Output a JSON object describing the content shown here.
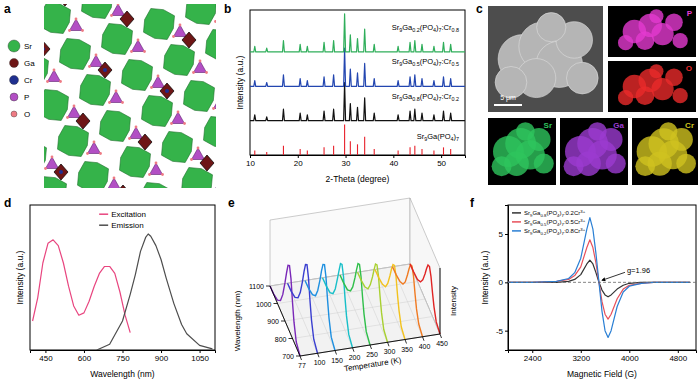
{
  "panel_labels": [
    "a",
    "b",
    "c",
    "d",
    "e",
    "f"
  ],
  "structure": {
    "legend": [
      {
        "label": "Sr",
        "color": "#35b34a"
      },
      {
        "label": "Ga",
        "color": "#6e1616"
      },
      {
        "label": "Cr",
        "color": "#1f2f8f"
      },
      {
        "label": "P",
        "color": "#b24fc4"
      },
      {
        "label": "O",
        "color": "#ee7b84"
      }
    ]
  },
  "sem": {
    "scale_bar": "5 μm",
    "maps": [
      {
        "label": "P",
        "color": "#e33ad0"
      },
      {
        "label": "O",
        "color": "#ea2a2a"
      },
      {
        "label": "Sr",
        "color": "#2ec45c"
      },
      {
        "label": "Ga",
        "color": "#9b3bd0"
      },
      {
        "label": "Cr",
        "color": "#cfc21f"
      }
    ]
  },
  "chart_data": [
    {
      "type": "line",
      "x_label": "2-Theta (degree)",
      "y_label": "Intensity (a.u.)",
      "xlim": [
        10,
        55
      ],
      "xticks": [
        10,
        20,
        30,
        40,
        50
      ],
      "ylim": [
        0,
        3.8
      ],
      "tick_labels": "x",
      "x": [
        10,
        10.8,
        11,
        11.2,
        13.3,
        13.5,
        13.7,
        16.8,
        17,
        17.2,
        20.3,
        20.5,
        20.7,
        21.8,
        22,
        22.2,
        25.3,
        25.5,
        25.7,
        27.3,
        27.5,
        27.7,
        29.6,
        29.8,
        30,
        30.8,
        31,
        31.2,
        32.3,
        32.5,
        32.7,
        33.8,
        34,
        34.2,
        35.8,
        36,
        36.2,
        40.8,
        41,
        41.2,
        43.3,
        43.5,
        43.7,
        44.3,
        44.5,
        44.7,
        45.8,
        46,
        46.2,
        48.3,
        48.5,
        48.7,
        50.3,
        50.5,
        50.7,
        51.8,
        52,
        52.2,
        55
      ],
      "series": [
        {
          "name": "Sr9Ga(PO4)7",
          "type": "stem",
          "color": "#e8202a",
          "x": [
            11,
            13.5,
            17,
            20.5,
            22,
            25.5,
            27.5,
            29.8,
            31,
            32.5,
            34,
            36,
            41,
            43.5,
            44.5,
            46,
            48.5,
            50.5,
            52
          ],
          "values": [
            0.12,
            0.08,
            0.24,
            0.16,
            0.12,
            0.2,
            0.24,
            0.8,
            0.36,
            0.28,
            0.48,
            0.16,
            0.12,
            0.2,
            0.24,
            0.16,
            0.12,
            0.2,
            0.16
          ]
        },
        {
          "name": "Sr9Ga0.8(PO4)7:Cr0.2",
          "color": "#111111",
          "values": [
            0.9,
            0.9,
            1.05,
            0.9,
            0.9,
            1.0,
            0.9,
            0.9,
            1.2,
            0.9,
            0.9,
            1.1,
            0.9,
            0.9,
            1.05,
            0.9,
            0.9,
            1.15,
            0.9,
            0.9,
            1.2,
            0.9,
            0.9,
            1.9,
            0.9,
            0.9,
            1.35,
            0.9,
            0.9,
            1.25,
            0.9,
            0.9,
            1.5,
            0.9,
            0.9,
            1.1,
            0.9,
            0.9,
            1.05,
            0.9,
            0.9,
            1.15,
            0.9,
            0.9,
            1.2,
            0.9,
            0.9,
            1.1,
            0.9,
            0.9,
            1.05,
            0.9,
            0.9,
            1.15,
            0.9,
            0.9,
            1.1,
            0.9,
            0.9
          ]
        },
        {
          "name": "Sr9Ga0.5(PO4)7:Cr0.5",
          "color": "#2346b0",
          "values": [
            1.8,
            1.8,
            1.95,
            1.8,
            1.8,
            1.9,
            1.8,
            1.8,
            2.1,
            1.8,
            1.8,
            2.0,
            1.8,
            1.8,
            1.95,
            1.8,
            1.8,
            2.05,
            1.8,
            1.8,
            2.1,
            1.8,
            1.8,
            2.8,
            1.8,
            1.8,
            2.25,
            1.8,
            1.8,
            2.15,
            1.8,
            1.8,
            2.4,
            1.8,
            1.8,
            2.0,
            1.8,
            1.8,
            1.95,
            1.8,
            1.8,
            2.05,
            1.8,
            1.8,
            2.1,
            1.8,
            1.8,
            2.0,
            1.8,
            1.8,
            1.95,
            1.8,
            1.8,
            2.05,
            1.8,
            1.8,
            2.0,
            1.8,
            1.8
          ]
        },
        {
          "name": "Sr9Ga0.2(PO4)7:Cr0.8",
          "color": "#2fae5a",
          "values": [
            2.7,
            2.7,
            2.85,
            2.7,
            2.7,
            2.8,
            2.7,
            2.7,
            3.0,
            2.7,
            2.7,
            2.9,
            2.7,
            2.7,
            2.85,
            2.7,
            2.7,
            2.95,
            2.7,
            2.7,
            3.0,
            2.7,
            2.7,
            3.7,
            2.7,
            2.7,
            3.15,
            2.7,
            2.7,
            3.05,
            2.7,
            2.7,
            3.3,
            2.7,
            2.7,
            2.9,
            2.7,
            2.7,
            2.85,
            2.7,
            2.7,
            2.95,
            2.7,
            2.7,
            3.0,
            2.7,
            2.7,
            2.9,
            2.7,
            2.7,
            2.85,
            2.7,
            2.7,
            2.95,
            2.7,
            2.7,
            2.9,
            2.7,
            2.7
          ]
        }
      ]
    },
    {
      "type": "line",
      "x_label": "Wavelength (nm)",
      "y_label": "Intensity (a.u.)",
      "xlim": [
        390,
        1110
      ],
      "xticks": [
        450,
        600,
        750,
        900,
        1050
      ],
      "ylim": [
        0,
        1.25
      ],
      "tick_labels": "x",
      "legend": "upper center",
      "series": [
        {
          "name": "Excitation",
          "color": "#e8457f",
          "x": [
            400,
            420,
            440,
            460,
            480,
            500,
            520,
            540,
            560,
            580,
            600,
            620,
            640,
            660,
            680,
            700,
            720,
            740,
            760,
            780
          ],
          "values": [
            0.25,
            0.45,
            0.75,
            0.92,
            0.95,
            0.9,
            0.75,
            0.55,
            0.38,
            0.3,
            0.32,
            0.42,
            0.55,
            0.66,
            0.72,
            0.72,
            0.66,
            0.5,
            0.3,
            0.15
          ]
        },
        {
          "name": "Emission",
          "color": "#4d4d4d",
          "x": [
            650,
            700,
            750,
            780,
            800,
            820,
            840,
            850,
            860,
            880,
            900,
            920,
            950,
            980,
            1000,
            1050,
            1100
          ],
          "values": [
            0,
            0.05,
            0.25,
            0.48,
            0.65,
            0.85,
            0.97,
            1.0,
            0.98,
            0.9,
            0.78,
            0.62,
            0.4,
            0.22,
            0.14,
            0.04,
            0.01
          ]
        }
      ]
    },
    {
      "type": "line3d",
      "x_label": "Wavelength (nm)",
      "z_label": "Temperature (K)",
      "y_label": "Intensity",
      "xlim": [
        700,
        1100
      ],
      "xticks": [
        700,
        800,
        900,
        1000,
        1100
      ],
      "ylim": [
        0,
        1
      ],
      "z_categories": [
        77,
        100,
        150,
        200,
        250,
        300,
        350,
        400,
        450
      ],
      "x": [
        700,
        750,
        780,
        800,
        820,
        840,
        860,
        880,
        900,
        930,
        960,
        1000,
        1050,
        1100
      ],
      "series": [
        {
          "color": "#7a28b8",
          "values": [
            0,
            0.08,
            0.3,
            0.55,
            0.85,
            1.0,
            0.95,
            0.78,
            0.58,
            0.32,
            0.15,
            0.05,
            0.01,
            0
          ]
        },
        {
          "color": "#3a3fd0",
          "values": [
            0,
            0.08,
            0.29,
            0.53,
            0.82,
            0.97,
            0.92,
            0.76,
            0.56,
            0.31,
            0.15,
            0.05,
            0.01,
            0
          ]
        },
        {
          "color": "#1d8fe0",
          "values": [
            0,
            0.07,
            0.28,
            0.51,
            0.79,
            0.93,
            0.88,
            0.73,
            0.54,
            0.3,
            0.14,
            0.05,
            0.01,
            0
          ]
        },
        {
          "color": "#18bfc8",
          "values": [
            0,
            0.07,
            0.27,
            0.49,
            0.76,
            0.89,
            0.85,
            0.69,
            0.52,
            0.28,
            0.13,
            0.04,
            0.01,
            0
          ]
        },
        {
          "color": "#2fbf4a",
          "values": [
            0,
            0.07,
            0.26,
            0.47,
            0.72,
            0.85,
            0.81,
            0.66,
            0.49,
            0.27,
            0.13,
            0.04,
            0.01,
            0
          ]
        },
        {
          "color": "#a8d030",
          "values": [
            0,
            0.06,
            0.24,
            0.44,
            0.68,
            0.8,
            0.76,
            0.62,
            0.46,
            0.26,
            0.12,
            0.04,
            0.01,
            0
          ]
        },
        {
          "color": "#f2c21e",
          "values": [
            0,
            0.06,
            0.23,
            0.41,
            0.64,
            0.75,
            0.71,
            0.59,
            0.44,
            0.24,
            0.11,
            0.04,
            0.01,
            0
          ]
        },
        {
          "color": "#f07a22",
          "values": [
            0,
            0.06,
            0.21,
            0.39,
            0.6,
            0.7,
            0.67,
            0.55,
            0.41,
            0.22,
            0.11,
            0.04,
            0.01,
            0
          ]
        },
        {
          "color": "#e02424",
          "values": [
            0,
            0.05,
            0.2,
            0.36,
            0.55,
            0.65,
            0.62,
            0.51,
            0.38,
            0.21,
            0.1,
            0.03,
            0.01,
            0
          ]
        }
      ]
    },
    {
      "type": "line",
      "x_label": "Magnetic Field (G)",
      "y_label": "Intensity (a.u.)",
      "xlim": [
        2000,
        5100
      ],
      "xticks": [
        2400,
        3200,
        4000,
        4800
      ],
      "ylim": [
        -7,
        8
      ],
      "yticks": [
        -5,
        0,
        5
      ],
      "legend": "upper left",
      "annotations": [
        {
          "text": "g=1.96",
          "x": 3500,
          "y": 0
        }
      ],
      "x": [
        2000,
        2400,
        2800,
        3000,
        3100,
        3200,
        3300,
        3350,
        3400,
        3450,
        3500,
        3550,
        3600,
        3650,
        3700,
        3800,
        3900,
        4000,
        4200,
        4400,
        4800,
        5000
      ],
      "series": [
        {
          "name": "Sr9Ga0.8(PO4)7:0.2Cr3+",
          "color": "#333333",
          "values": [
            0,
            0,
            0,
            0.1,
            0.3,
            0.8,
            1.9,
            2.3,
            1.9,
            1.0,
            0,
            -0.8,
            -1.3,
            -1.5,
            -1.3,
            -0.7,
            -0.3,
            -0.1,
            0,
            0,
            0,
            0
          ]
        },
        {
          "name": "Sr9Ga0.5(PO4)7:0.5Cr3+",
          "color": "#e8505a",
          "values": [
            0,
            0,
            0.1,
            0.3,
            0.7,
            1.6,
            3.6,
            4.4,
            3.6,
            2.0,
            0,
            -2.0,
            -3.3,
            -3.8,
            -3.3,
            -1.7,
            -0.7,
            -0.3,
            -0.1,
            0,
            0,
            0
          ]
        },
        {
          "name": "Sr9Ga0.2(PO4)7:0.8Cr3+",
          "color": "#2a7fd4",
          "values": [
            0,
            0,
            0.1,
            0.4,
            1.0,
            2.5,
            5.5,
            6.7,
            5.5,
            3.0,
            0,
            -3.0,
            -5.0,
            -5.7,
            -5.0,
            -2.5,
            -1.0,
            -0.4,
            -0.1,
            0,
            0,
            0
          ]
        }
      ]
    }
  ]
}
